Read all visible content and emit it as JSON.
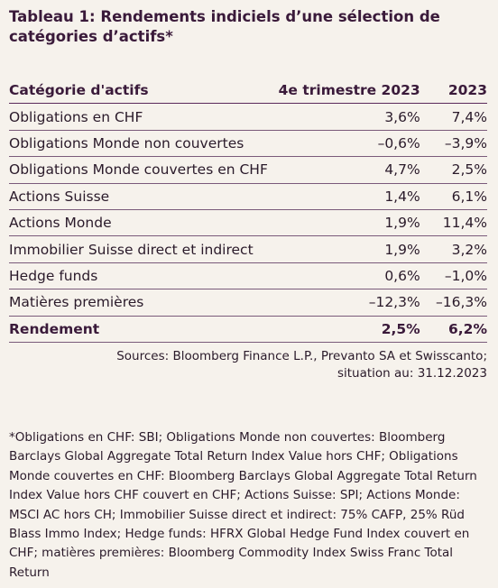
{
  "title": [
    "Tableau 1: Rendements indiciels d’une sélection de",
    "catégories d’actifs*"
  ],
  "table": {
    "header": [
      "Catégorie d'actifs",
      "4e trimestre 2023",
      "2023"
    ],
    "rows": [
      [
        "Obligations en CHF",
        "3,6%",
        "7,4%"
      ],
      [
        "Obligations Monde non couvertes",
        "–0,6%",
        "–3,9%"
      ],
      [
        "Obligations Monde couvertes en CHF",
        "4,7%",
        "2,5%"
      ],
      [
        "Actions Suisse",
        "1,4%",
        "6,1%"
      ],
      [
        "Actions Monde",
        "1,9%",
        "11,4%"
      ],
      [
        "Immobilier Suisse direct et indirect",
        "1,9%",
        "3,2%"
      ],
      [
        "Hedge funds",
        "0,6%",
        "–1,0%"
      ],
      [
        "Matières premières",
        "–12,3%",
        "–16,3%"
      ]
    ],
    "total": [
      "Rendement",
      "2,5%",
      "6,2%"
    ]
  },
  "sources": [
    "Sources: Bloomberg Finance L.P., Prevanto SA et Swisscanto;",
    "situation au: 31.12.2023"
  ],
  "footnote": [
    "*Obligations en CHF: SBI; Obligations Monde non couvertes: Bloomberg",
    "Barclays Global Aggregate Total Return Index Value hors CHF; Obligations",
    "Monde couvertes en CHF: Bloomberg Barclays Global Aggregate Total Return",
    "Index Value hors CHF couvert en CHF; Actions Suisse: SPI; Actions Monde:",
    "MSCI AC hors CH; Immobilier Suisse direct et indirect: 75% CAFP, 25% Rüd",
    "Blass Immo Index; Hedge funds: HFRX Global Hedge Fund Index couvert en",
    "CHF; matières premières: Bloomberg Commodity Index Swiss Franc Total",
    "Return"
  ]
}
